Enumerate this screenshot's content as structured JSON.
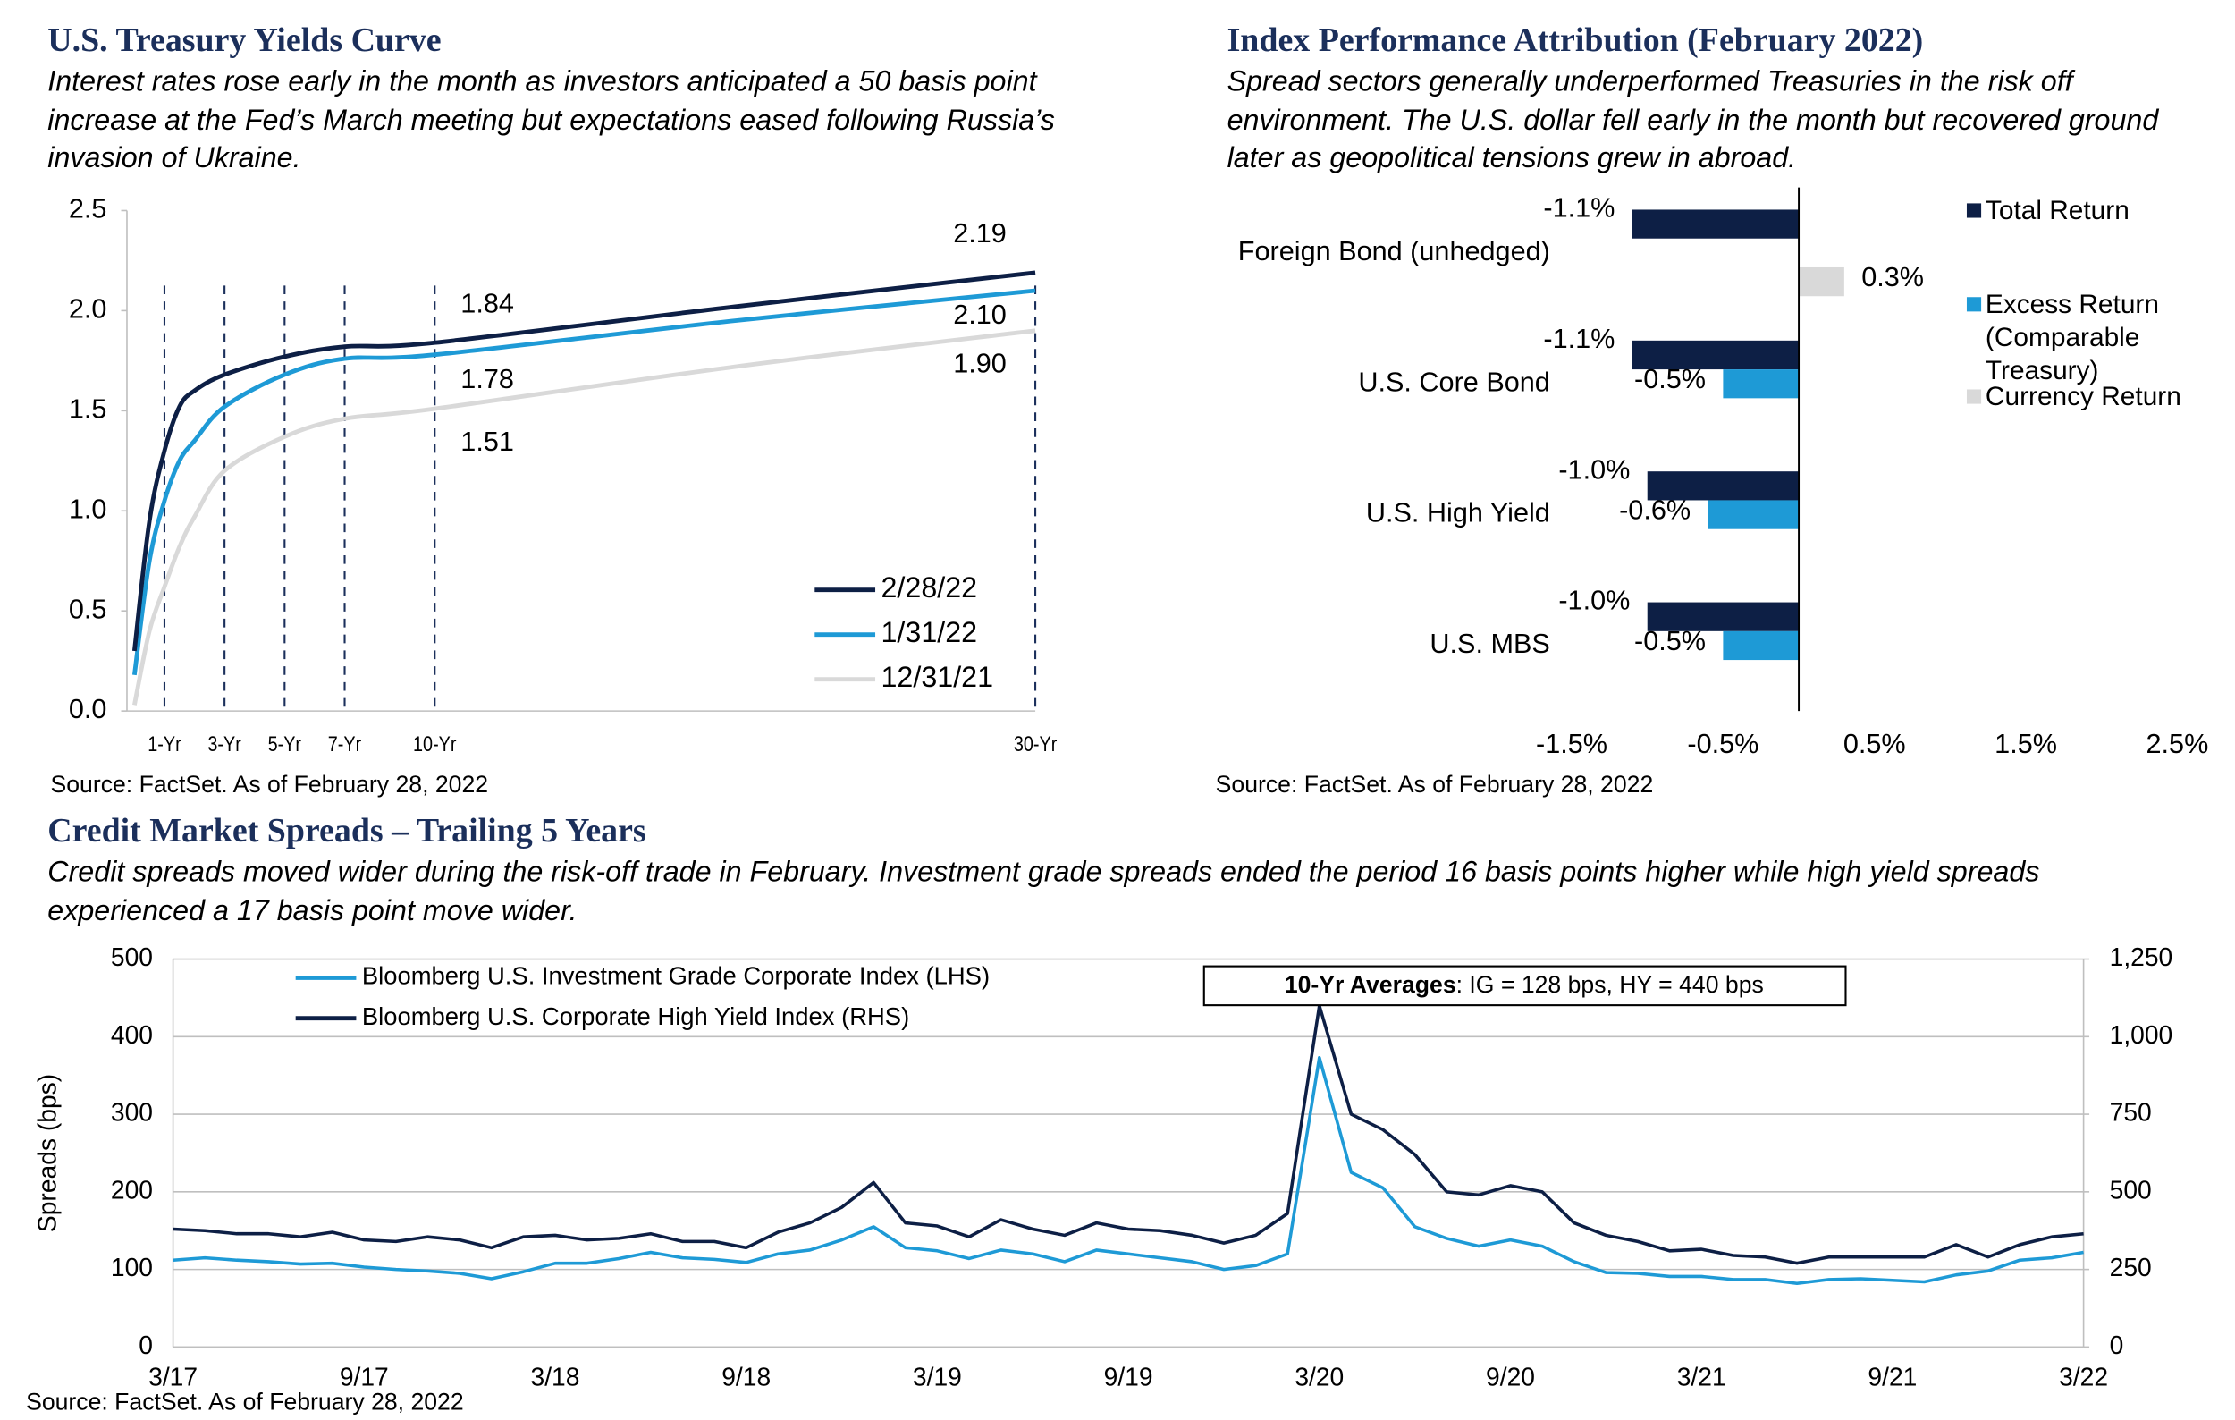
{
  "chart_data": [
    {
      "type": "line",
      "title": "U.S. Treasury Yields Curve",
      "subtitle": "Interest rates rose early in the month as investors anticipated a 50 basis point increase at the Fed’s March meeting but expectations eased following Russia’s invasion of Ukraine.",
      "source": "Source: FactSet. As of February 28, 2022",
      "smooth": true,
      "xgrid": "dashed",
      "legend": "lower right",
      "x": [
        0,
        0.5,
        1,
        1.5,
        2,
        3,
        5,
        7,
        10,
        20,
        30
      ],
      "xlim": [
        -0.25,
        30
      ],
      "xticks": [
        {
          "value": 1,
          "label": "1-Yr"
        },
        {
          "value": 3,
          "label": "3-Yr"
        },
        {
          "value": 5,
          "label": "5-Yr"
        },
        {
          "value": 7,
          "label": "7-Yr"
        },
        {
          "value": 10,
          "label": "10-Yr"
        },
        {
          "value": 30,
          "label": "30-Yr"
        }
      ],
      "ylim": [
        0,
        2.5
      ],
      "yticks": [
        {
          "value": 0,
          "label": "0.0"
        },
        0.5,
        {
          "value": 1,
          "label": "1.0"
        },
        1.5,
        {
          "value": 2,
          "label": "2.0"
        },
        2.5
      ],
      "series": [
        {
          "name": "2/28/22",
          "color": "#0d1f45",
          "values": [
            0.3,
            0.95,
            1.3,
            1.52,
            1.6,
            1.68,
            1.77,
            1.82,
            1.84,
            2.02,
            2.19
          ],
          "value_labels": [
            null,
            null,
            null,
            null,
            null,
            null,
            null,
            null,
            "1.84",
            null,
            "2.19"
          ]
        },
        {
          "name": "1/31/22",
          "color": "#1e9ad6",
          "values": [
            0.18,
            0.75,
            1.05,
            1.25,
            1.35,
            1.52,
            1.68,
            1.76,
            1.78,
            1.95,
            2.1
          ],
          "value_labels": [
            null,
            null,
            null,
            null,
            null,
            null,
            null,
            null,
            "1.78",
            null,
            "2.10"
          ]
        },
        {
          "name": "12/31/21",
          "color": "#d9d9d9",
          "values": [
            0.03,
            0.4,
            0.62,
            0.82,
            0.97,
            1.2,
            1.37,
            1.46,
            1.51,
            1.72,
            1.9
          ],
          "value_labels": [
            null,
            null,
            null,
            null,
            null,
            null,
            null,
            null,
            "1.51",
            null,
            "1.90"
          ]
        }
      ]
    },
    {
      "type": "bar",
      "horizontal": true,
      "title": "Index Performance Attribution (February 2022)",
      "subtitle": "Spread sectors generally underperformed Treasuries in the risk off environment. The U.S. dollar fell early in the month but recovered ground later as geopolitical tensions grew in abroad.",
      "source": "Source: FactSet. As of February 28, 2022",
      "legend": "upper right",
      "categories": [
        "Foreign Bond (unhedged)",
        "U.S. Core Bond",
        "U.S. High Yield",
        "U.S. MBS"
      ],
      "series": [
        {
          "name": "Total Return",
          "color": "#0d1f45",
          "values": [
            -1.1,
            -1.1,
            -1.0,
            -1.0
          ],
          "value_labels": [
            "-1.1%",
            "-1.1%",
            "-1.0%",
            "-1.0%"
          ]
        },
        {
          "name": "Excess Return (Comparable Treasury)",
          "color": "#1e9ad6",
          "values": [
            null,
            -0.5,
            -0.6,
            -0.5
          ],
          "value_labels": [
            null,
            "-0.5%",
            "-0.6%",
            "-0.5%"
          ]
        },
        {
          "name": "Currency Return",
          "color": "#d9d9d9",
          "values": [
            0.3,
            null,
            null,
            null
          ],
          "value_labels": [
            "0.3%",
            null,
            null,
            null
          ]
        }
      ],
      "xlim": [
        -1.5,
        2.5
      ],
      "xticks": [
        {
          "value": -1.5,
          "label": "-1.5%"
        },
        {
          "value": -0.5,
          "label": "-0.5%"
        },
        {
          "value": 0.5,
          "label": "0.5%"
        },
        {
          "value": 1.5,
          "label": "1.5%"
        },
        {
          "value": 2.5,
          "label": "2.5%"
        }
      ]
    },
    {
      "type": "line",
      "title": "Credit Market Spreads – Trailing 5 Years",
      "subtitle": "Credit spreads moved wider during the risk-off trade in February. Investment grade spreads ended the period 16 basis points higher while high yield spreads experienced a 17 basis point move wider.",
      "source": "Source: FactSet. As of February 28, 2022",
      "y_label": "Spreads (bps)",
      "grid": true,
      "legend": "upper left",
      "annotation": {
        "bold": "10-Yr Averages",
        "text": ": IG = 128 bps, HY = 440 bps"
      },
      "x": [
        "3/17",
        "4/17",
        "5/17",
        "6/17",
        "7/17",
        "8/17",
        "9/17",
        "10/17",
        "11/17",
        "12/17",
        "1/18",
        "2/18",
        "3/18",
        "4/18",
        "5/18",
        "6/18",
        "7/18",
        "8/18",
        "9/18",
        "10/18",
        "11/18",
        "12/18",
        "1/19",
        "2/19",
        "3/19",
        "4/19",
        "5/19",
        "6/19",
        "7/19",
        "8/19",
        "9/19",
        "10/19",
        "11/19",
        "12/19",
        "1/20",
        "2/20",
        "3/20",
        "4/20",
        "5/20",
        "6/20",
        "7/20",
        "8/20",
        "9/20",
        "10/20",
        "11/20",
        "12/20",
        "1/21",
        "2/21",
        "3/21",
        "4/21",
        "5/21",
        "6/21",
        "7/21",
        "8/21",
        "9/21",
        "10/21",
        "11/21",
        "12/21",
        "1/22",
        "2/22",
        "3/22"
      ],
      "ylim": [
        0,
        500
      ],
      "yticks": [
        0,
        100,
        200,
        300,
        400,
        500
      ],
      "y2lim": [
        0,
        1250
      ],
      "y2ticks": [
        0,
        250,
        500,
        750,
        {
          "value": 1000,
          "label": "1,000"
        },
        {
          "value": 1250,
          "label": "1,250"
        }
      ],
      "series": [
        {
          "name": "Bloomberg U.S. Investment Grade Corporate Index (LHS)",
          "color": "#1e9ad6",
          "values": [
            112,
            115,
            112,
            110,
            107,
            108,
            103,
            100,
            98,
            95,
            88,
            97,
            108,
            108,
            114,
            122,
            115,
            113,
            109,
            120,
            125,
            138,
            155,
            128,
            124,
            114,
            125,
            120,
            110,
            125,
            120,
            115,
            110,
            100,
            105,
            120,
            373,
            225,
            205,
            155,
            140,
            130,
            138,
            130,
            110,
            96,
            95,
            91,
            91,
            87,
            87,
            82,
            87,
            88,
            86,
            84,
            93,
            98,
            112,
            115,
            122
          ]
        },
        {
          "name": "Bloomberg U.S. Corporate High Yield Index (RHS)",
          "color": "#0d1f45",
          "axis": "y2",
          "values": [
            380,
            375,
            365,
            365,
            355,
            370,
            345,
            340,
            355,
            345,
            320,
            355,
            360,
            345,
            350,
            365,
            340,
            340,
            320,
            370,
            400,
            450,
            530,
            400,
            390,
            355,
            410,
            380,
            360,
            400,
            380,
            375,
            360,
            335,
            360,
            430,
            1100,
            750,
            700,
            620,
            500,
            490,
            520,
            500,
            400,
            360,
            340,
            310,
            315,
            295,
            290,
            270,
            290,
            290,
            290,
            290,
            330,
            290,
            330,
            355,
            365
          ]
        }
      ]
    }
  ]
}
